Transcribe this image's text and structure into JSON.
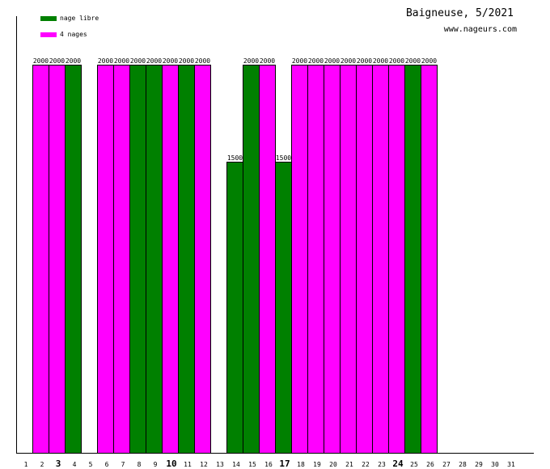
{
  "chart_data": {
    "type": "bar",
    "title": "Baigneuse, 5/2021",
    "subtitle": "www.nageurs.com",
    "colors": {
      "nage libre": "#008000",
      "4 nages": "#ff00ff"
    },
    "legend": [
      {
        "name": "nage libre",
        "color": "#008000"
      },
      {
        "name": "4 nages",
        "color": "#ff00ff"
      }
    ],
    "days": [
      1,
      2,
      3,
      4,
      5,
      6,
      7,
      8,
      9,
      10,
      11,
      12,
      13,
      14,
      15,
      16,
      17,
      18,
      19,
      20,
      21,
      22,
      23,
      24,
      25,
      26,
      27,
      28,
      29,
      30,
      31
    ],
    "bold_days": [
      3,
      10,
      17,
      24
    ],
    "bars": [
      {
        "day": 2,
        "value": 2000,
        "style": "4 nages"
      },
      {
        "day": 3,
        "value": 2000,
        "style": "4 nages"
      },
      {
        "day": 4,
        "value": 2000,
        "style": "nage libre"
      },
      {
        "day": 6,
        "value": 2000,
        "style": "4 nages"
      },
      {
        "day": 7,
        "value": 2000,
        "style": "4 nages"
      },
      {
        "day": 8,
        "value": 2000,
        "style": "nage libre"
      },
      {
        "day": 9,
        "value": 2000,
        "style": "nage libre"
      },
      {
        "day": 10,
        "value": 2000,
        "style": "4 nages"
      },
      {
        "day": 11,
        "value": 2000,
        "style": "nage libre"
      },
      {
        "day": 12,
        "value": 2000,
        "style": "4 nages"
      },
      {
        "day": 14,
        "value": 1500,
        "style": "nage libre"
      },
      {
        "day": 15,
        "value": 2000,
        "style": "nage libre"
      },
      {
        "day": 16,
        "value": 2000,
        "style": "4 nages"
      },
      {
        "day": 17,
        "value": 1500,
        "style": "nage libre"
      },
      {
        "day": 18,
        "value": 2000,
        "style": "4 nages"
      },
      {
        "day": 19,
        "value": 2000,
        "style": "4 nages"
      },
      {
        "day": 20,
        "value": 2000,
        "style": "4 nages"
      },
      {
        "day": 21,
        "value": 2000,
        "style": "4 nages"
      },
      {
        "day": 22,
        "value": 2000,
        "style": "4 nages"
      },
      {
        "day": 23,
        "value": 2000,
        "style": "4 nages"
      },
      {
        "day": 24,
        "value": 2000,
        "style": "4 nages"
      },
      {
        "day": 25,
        "value": 2000,
        "style": "nage libre"
      },
      {
        "day": 26,
        "value": 2000,
        "style": "4 nages"
      }
    ],
    "ylim": [
      0,
      2400
    ]
  }
}
